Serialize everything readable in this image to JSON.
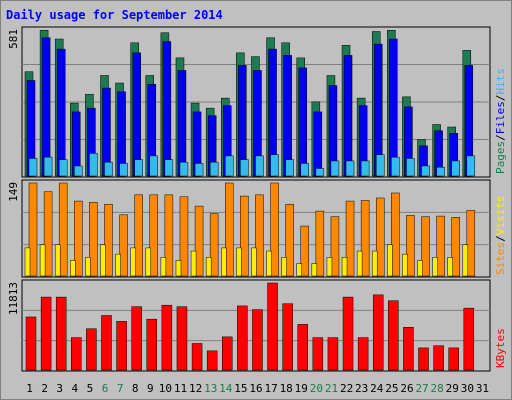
{
  "title": "Daily usage for September 2014",
  "colors": {
    "pages": "#1e7a50",
    "files": "#0000ee",
    "hits": "#33bbee",
    "sites": "#ff8800",
    "visits": "#ffee00",
    "kbytes": "#ff0000",
    "weekend": "#1e7a50",
    "weekday": "#000000"
  },
  "weekend_days": [
    6,
    7,
    13,
    14,
    20,
    21,
    27,
    28
  ],
  "chart_data": [
    {
      "type": "bar",
      "panel": "top",
      "max_label": "581",
      "ylim": [
        0,
        581
      ],
      "ylabel_parts": [
        "Pages",
        "Files",
        "Hits"
      ],
      "categories": [
        "1",
        "2",
        "3",
        "4",
        "5",
        "6",
        "7",
        "8",
        "9",
        "10",
        "11",
        "12",
        "13",
        "14",
        "15",
        "16",
        "17",
        "18",
        "19",
        "20",
        "21",
        "22",
        "23",
        "24",
        "25",
        "26",
        "27",
        "28",
        "29",
        "30",
        "31"
      ],
      "series": [
        {
          "name": "Pages",
          "values": [
            415,
            580,
            545,
            290,
            325,
            400,
            370,
            530,
            400,
            570,
            470,
            290,
            270,
            310,
            490,
            475,
            550,
            530,
            470,
            295,
            400,
            520,
            310,
            575,
            580,
            315,
            145,
            205,
            195,
            500,
            0
          ]
        },
        {
          "name": "Files",
          "values": [
            380,
            550,
            505,
            255,
            270,
            350,
            335,
            490,
            365,
            535,
            420,
            255,
            240,
            280,
            440,
            420,
            505,
            480,
            430,
            255,
            360,
            480,
            280,
            525,
            545,
            275,
            120,
            180,
            170,
            440,
            0
          ]
        },
        {
          "name": "Hits",
          "values": [
            70,
            75,
            65,
            40,
            90,
            55,
            50,
            65,
            80,
            65,
            55,
            50,
            55,
            80,
            65,
            80,
            85,
            65,
            50,
            30,
            60,
            60,
            60,
            85,
            75,
            70,
            40,
            35,
            60,
            80,
            0
          ]
        }
      ]
    },
    {
      "type": "bar",
      "panel": "middle",
      "max_label": "149",
      "ylim": [
        0,
        149
      ],
      "ylabel_parts": [
        "Sites",
        "Visits"
      ],
      "categories": [
        "1",
        "2",
        "3",
        "4",
        "5",
        "6",
        "7",
        "8",
        "9",
        "10",
        "11",
        "12",
        "13",
        "14",
        "15",
        "16",
        "17",
        "18",
        "19",
        "20",
        "21",
        "22",
        "23",
        "24",
        "25",
        "26",
        "27",
        "28",
        "29",
        "30",
        "31"
      ],
      "series": [
        {
          "name": "Sites",
          "values": [
            149,
            135,
            149,
            120,
            118,
            115,
            98,
            130,
            130,
            130,
            127,
            112,
            100,
            149,
            128,
            130,
            149,
            115,
            80,
            104,
            95,
            120,
            121,
            125,
            133,
            97,
            95,
            96,
            94,
            105,
            0
          ]
        },
        {
          "name": "Visits",
          "values": [
            45,
            50,
            50,
            25,
            30,
            50,
            35,
            45,
            45,
            30,
            25,
            40,
            30,
            45,
            45,
            45,
            40,
            30,
            20,
            20,
            30,
            30,
            40,
            40,
            50,
            35,
            25,
            30,
            30,
            50,
            0
          ]
        }
      ]
    },
    {
      "type": "bar",
      "panel": "bottom",
      "max_label": "11813",
      "ylim": [
        0,
        11813
      ],
      "ylabel_parts": [
        "KBytes"
      ],
      "categories": [
        "1",
        "2",
        "3",
        "4",
        "5",
        "6",
        "7",
        "8",
        "9",
        "10",
        "11",
        "12",
        "13",
        "14",
        "15",
        "16",
        "17",
        "18",
        "19",
        "20",
        "21",
        "22",
        "23",
        "24",
        "25",
        "26",
        "27",
        "28",
        "29",
        "30",
        "31"
      ],
      "series": [
        {
          "name": "KBytes",
          "values": [
            7200,
            9900,
            9900,
            4400,
            5600,
            7400,
            6600,
            8600,
            6900,
            8800,
            8600,
            3600,
            2600,
            4500,
            8700,
            8200,
            11813,
            9000,
            6200,
            4400,
            4400,
            9900,
            4400,
            10200,
            9400,
            5800,
            3000,
            3300,
            3000,
            8400,
            0
          ]
        }
      ]
    }
  ]
}
